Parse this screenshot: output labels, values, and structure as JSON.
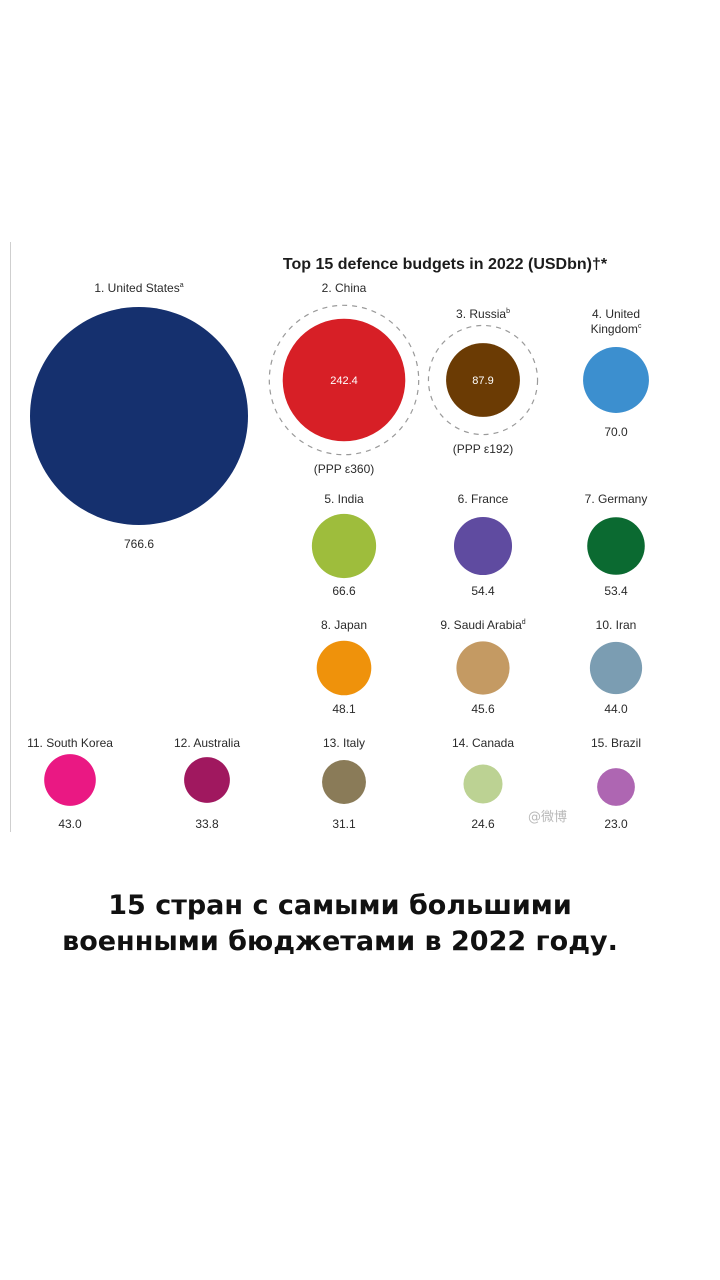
{
  "chart_data": {
    "type": "bubble",
    "title": "Top 15 defence budgets in 2022 (USDbn)†*",
    "unit": "USDbn",
    "items": [
      {
        "label": "1. United States",
        "sup": "a",
        "value": 766.6,
        "value_text": "766.6",
        "color": "#15306e"
      },
      {
        "label": "2. China",
        "sup": "",
        "value": 242.4,
        "value_text": "242.4",
        "color": "#d71f26",
        "ppp_text": "(PPP ε360)",
        "ppp_value": 360
      },
      {
        "label": "3. Russia",
        "sup": "b",
        "value": 87.9,
        "value_text": "87.9",
        "color": "#6b3b04",
        "ppp_text": "(PPP ε192)",
        "ppp_value": 192
      },
      {
        "label": "4. United Kingdom",
        "sup": "c",
        "value": 70.0,
        "value_text": "70.0",
        "color": "#3c8fcf"
      },
      {
        "label": "5. India",
        "sup": "",
        "value": 66.6,
        "value_text": "66.6",
        "color": "#9ebd3c"
      },
      {
        "label": "6. France",
        "sup": "",
        "value": 54.4,
        "value_text": "54.4",
        "color": "#5f4ba0"
      },
      {
        "label": "7. Germany",
        "sup": "",
        "value": 53.4,
        "value_text": "53.4",
        "color": "#0b6a31"
      },
      {
        "label": "8. Japan",
        "sup": "",
        "value": 48.1,
        "value_text": "48.1",
        "color": "#ef920b"
      },
      {
        "label": "9. Saudi Arabia",
        "sup": "d",
        "value": 45.6,
        "value_text": "45.6",
        "color": "#c49a63"
      },
      {
        "label": "10. Iran",
        "sup": "",
        "value": 44.0,
        "value_text": "44.0",
        "color": "#7b9db2"
      },
      {
        "label": "11. South Korea",
        "sup": "",
        "value": 43.0,
        "value_text": "43.0",
        "color": "#ea1883"
      },
      {
        "label": "12. Australia",
        "sup": "",
        "value": 33.8,
        "value_text": "33.8",
        "color": "#a0185f"
      },
      {
        "label": "13. Italy",
        "sup": "",
        "value": 31.1,
        "value_text": "31.1",
        "color": "#8a7b58"
      },
      {
        "label": "14. Canada",
        "sup": "",
        "value": 24.6,
        "value_text": "24.6",
        "color": "#bcd293"
      },
      {
        "label": "15. Brazil",
        "sup": "",
        "value": 23.0,
        "value_text": "23.0",
        "color": "#ae66b2"
      }
    ]
  },
  "watermark": "@微博",
  "caption": {
    "line1": "15 стран с самыми большими",
    "line2": "военными бюджетами в 2022 году."
  }
}
